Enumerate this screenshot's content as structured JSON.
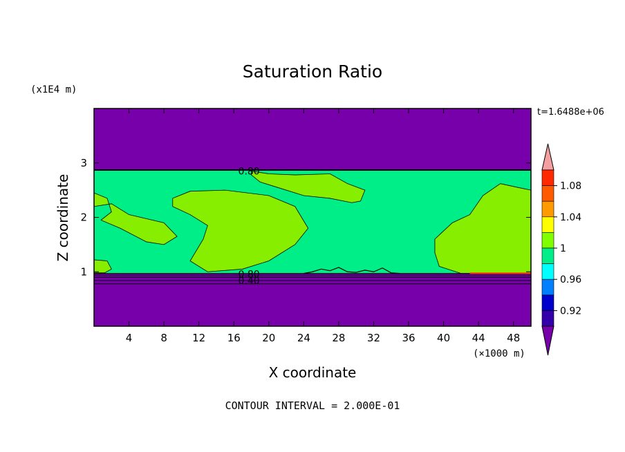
{
  "chart_data": {
    "type": "heatmap",
    "title": "Saturation Ratio",
    "xlabel": "X coordinate",
    "ylabel": "Z coordinate",
    "x_unit": "(×1000 m)",
    "y_unit": "(x1E4 m)",
    "time_label": "t=1.6488e+06",
    "footer": "CONTOUR INTERVAL = 2.000E-01",
    "xlim": [
      0,
      50
    ],
    "ylim": [
      0,
      4
    ],
    "x_ticks": [
      "4",
      "8",
      "12",
      "16",
      "20",
      "24",
      "28",
      "32",
      "36",
      "40",
      "44",
      "48"
    ],
    "x_tick_values": [
      4,
      8,
      12,
      16,
      20,
      24,
      28,
      32,
      36,
      40,
      44,
      48
    ],
    "y_ticks": [
      "1",
      "2",
      "3"
    ],
    "y_tick_values": [
      1,
      2,
      3
    ],
    "contour_labels": [
      {
        "text": "0.80",
        "x": 16.5,
        "z": 2.85
      },
      {
        "text": "0.80",
        "x": 16.5,
        "z": 0.96
      },
      {
        "text": "0.40",
        "x": 16.5,
        "z": 0.84
      }
    ],
    "regions": [
      {
        "name": "upper-dry-layer",
        "z_range": [
          2.87,
          4.0
        ],
        "level": "< 0.92"
      },
      {
        "name": "moist-layer",
        "z_range": [
          0.97,
          2.87
        ],
        "level": "0.98–1.00"
      },
      {
        "name": "lower-dry-layer",
        "z_range": [
          0,
          0.97
        ],
        "level": "< 0.92"
      }
    ],
    "supersaturated_patches": [
      {
        "name": "patch-top-center",
        "x_range": [
          18,
          32
        ],
        "z_range": [
          2.2,
          2.85
        ]
      },
      {
        "name": "patch-left-top",
        "x_range": [
          0,
          10
        ],
        "z_range": [
          1.5,
          2.45
        ]
      },
      {
        "name": "patch-left-middle",
        "x_range": [
          7.5,
          25
        ],
        "z_range": [
          1.0,
          2.4
        ]
      },
      {
        "name": "patch-right",
        "x_range": [
          35,
          50
        ],
        "z_range": [
          1.0,
          2.6
        ]
      },
      {
        "name": "patch-left-bottom",
        "x_range": [
          0,
          2
        ],
        "z_range": [
          1.0,
          1.2
        ]
      }
    ],
    "colorbar": {
      "labels": [
        "1.08",
        "1.04",
        "1",
        "0.96",
        "0.92"
      ],
      "label_values": [
        1.08,
        1.04,
        1.0,
        0.96,
        0.92
      ],
      "bands": [
        {
          "level": 1.1,
          "color": "#f4a0a0"
        },
        {
          "level": 1.08,
          "color": "#ff2a00"
        },
        {
          "level": 1.06,
          "color": "#ff5a00"
        },
        {
          "level": 1.04,
          "color": "#ff9a00"
        },
        {
          "level": 1.02,
          "color": "#ffff00"
        },
        {
          "level": 1.0,
          "color": "#7fff00"
        },
        {
          "level": 0.98,
          "color": "#00ee88"
        },
        {
          "level": 0.96,
          "color": "#00ffff"
        },
        {
          "level": 0.94,
          "color": "#0080ff"
        },
        {
          "level": 0.92,
          "color": "#0000cc"
        },
        {
          "level": 0.9,
          "color": "#3300aa"
        },
        {
          "level": 0.88,
          "color": "#7700aa"
        }
      ]
    },
    "colors": {
      "dry": "#7700aa",
      "moist": "#00ee88",
      "supersat": "#88ee00",
      "contour": "#000000"
    }
  }
}
